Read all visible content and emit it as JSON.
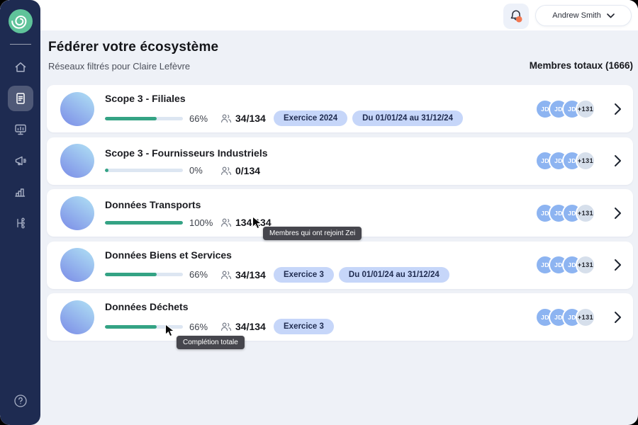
{
  "sidebar": {
    "logo": "zei-spiral-logo",
    "items": [
      {
        "id": "home",
        "icon": "home-icon",
        "active": false
      },
      {
        "id": "documents",
        "icon": "document-icon",
        "active": true
      },
      {
        "id": "dashboard",
        "icon": "screen-chart-icon",
        "active": false
      },
      {
        "id": "announcements",
        "icon": "megaphone-icon",
        "active": false
      },
      {
        "id": "statistics",
        "icon": "bar-chart-icon",
        "active": false
      },
      {
        "id": "network",
        "icon": "share-nodes-icon",
        "active": false
      }
    ],
    "help_icon": "help-icon"
  },
  "header": {
    "notification": {
      "icon": "bell-icon",
      "has_unread": true,
      "dot_color": "#f2764f"
    },
    "user": {
      "name": "Andrew Smith",
      "chevron": "chevron-down-icon"
    }
  },
  "page": {
    "title": "Fédérer votre écosystème",
    "subtitle": "Réseaux filtrés pour Claire Lefèvre",
    "members_total": "Membres totaux (1666)"
  },
  "networks": [
    {
      "title": "Scope 3 - Filiales",
      "progress": 66,
      "progress_label": "66%",
      "members": "34/134",
      "badges": [
        "Exercice 2024",
        "Du 01/01/24 au 31/12/24"
      ],
      "avatars": [
        "JD",
        "JD",
        "JD"
      ],
      "more": "+131"
    },
    {
      "title": "Scope 3 - Fournisseurs Industriels",
      "progress": 0,
      "progress_label": "0%",
      "members": "0/134",
      "badges": [],
      "avatars": [
        "JD",
        "JD",
        "JD"
      ],
      "more": "+131"
    },
    {
      "title": "Données Transports",
      "progress": 100,
      "progress_label": "100%",
      "members": "134/134",
      "badges": [],
      "avatars": [
        "JD",
        "JD",
        "JD"
      ],
      "more": "+131"
    },
    {
      "title": "Données Biens et Services",
      "progress": 66,
      "progress_label": "66%",
      "members": "34/134",
      "badges": [
        "Exercice 3",
        "Du 01/01/24 au 31/12/24"
      ],
      "avatars": [
        "JD",
        "JD",
        "JD"
      ],
      "more": "+131"
    },
    {
      "title": "Données Déchets",
      "progress": 66,
      "progress_label": "66%",
      "members": "34/134",
      "badges": [
        "Exercice 3"
      ],
      "avatars": [
        "JD",
        "JD",
        "JD"
      ],
      "more": "+131"
    }
  ],
  "overlays": {
    "tooltip_members": "Membres qui ont rejoint Zei",
    "tooltip_completion": "Complétion totale"
  },
  "colors": {
    "sidebar": "#1e2b51",
    "background": "#eef1f7",
    "accent_green": "#34a384",
    "logo_green": "#5fc39a",
    "badge_blue": "#c6d6f9",
    "avatar_blue": "#8db4f1",
    "notification_orange": "#f2764f",
    "tooltip_gray": "#46464d"
  }
}
